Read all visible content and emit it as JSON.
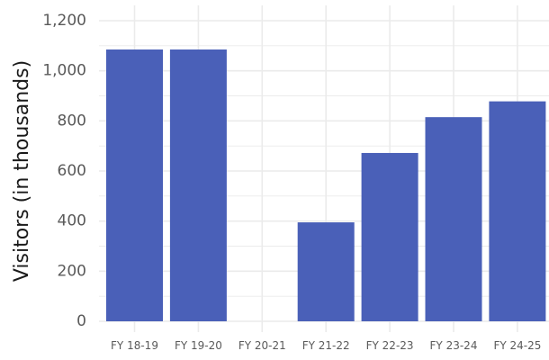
{
  "chart_data": {
    "type": "bar",
    "categories": [
      "FY 18-19",
      "FY 19-20",
      "FY 20-21",
      "FY 21-22",
      "FY 22-23",
      "FY 23-24",
      "FY 24-25"
    ],
    "values": [
      1085,
      1085,
      0,
      395,
      672,
      815,
      878
    ],
    "xlabel": "",
    "ylabel": "Visitors (in thousands)",
    "ylim": [
      0,
      1200
    ],
    "yticks": [
      0,
      200,
      400,
      600,
      800,
      1000,
      1200
    ],
    "ytick_labels": [
      "0",
      "200",
      "400",
      "600",
      "800",
      "1,000",
      "1,200"
    ],
    "grid": true,
    "bar_color": "#4a60b8",
    "grid_color": "#ebebeb"
  }
}
